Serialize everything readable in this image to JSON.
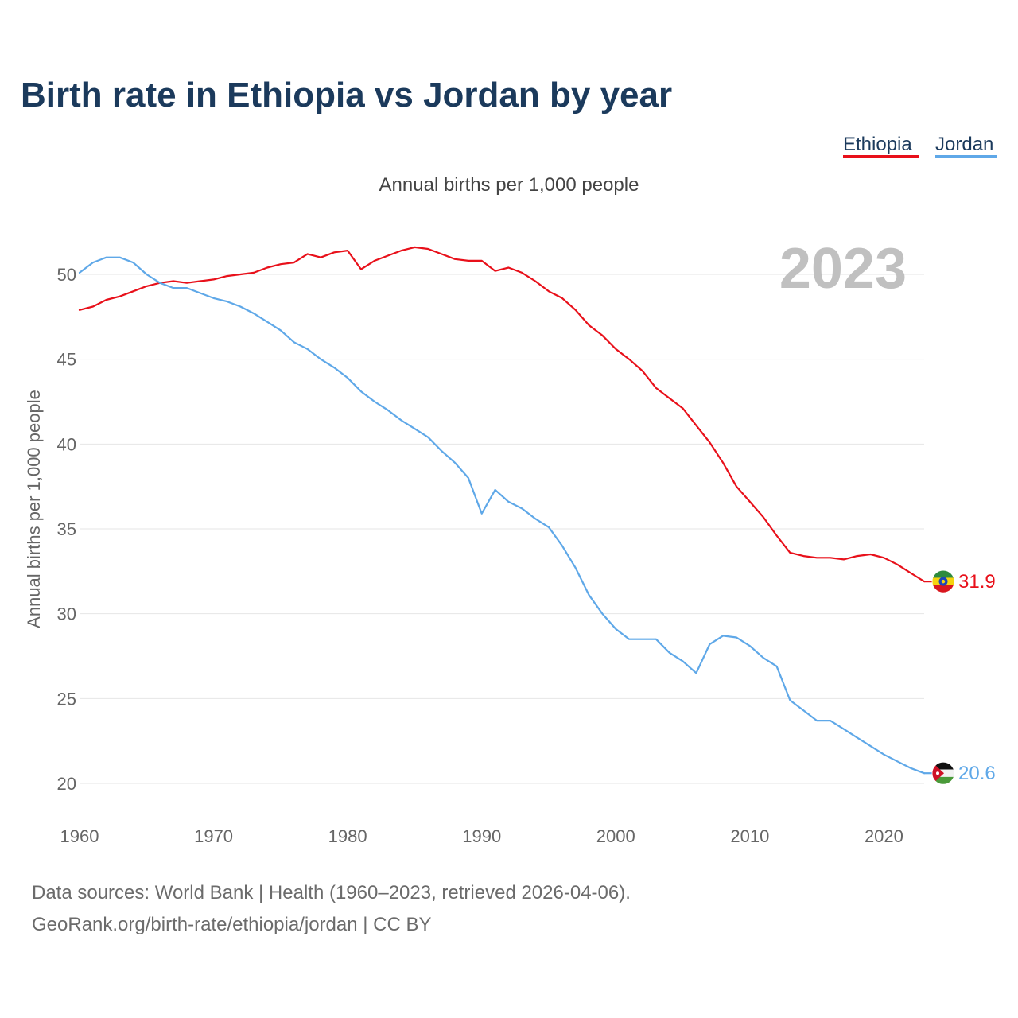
{
  "chart_data": {
    "type": "line",
    "title": "Birth rate in Ethiopia vs Jordan by year",
    "subtitle": "Annual births per 1,000 people",
    "ylabel": "Annual births per 1,000 people",
    "xlabel": "",
    "current_year_label": "2023",
    "xlim": [
      1960,
      2023
    ],
    "ylim": [
      18.5,
      53
    ],
    "x_ticks": [
      1960,
      1970,
      1980,
      1990,
      2000,
      2010,
      2020
    ],
    "y_ticks": [
      20,
      25,
      30,
      35,
      40,
      45,
      50
    ],
    "grid": true,
    "legend_position": "top-right",
    "x": [
      1960,
      1961,
      1962,
      1963,
      1964,
      1965,
      1966,
      1967,
      1968,
      1969,
      1970,
      1971,
      1972,
      1973,
      1974,
      1975,
      1976,
      1977,
      1978,
      1979,
      1980,
      1981,
      1982,
      1983,
      1984,
      1985,
      1986,
      1987,
      1988,
      1989,
      1990,
      1991,
      1992,
      1993,
      1994,
      1995,
      1996,
      1997,
      1998,
      1999,
      2000,
      2001,
      2002,
      2003,
      2004,
      2005,
      2006,
      2007,
      2008,
      2009,
      2010,
      2011,
      2012,
      2013,
      2014,
      2015,
      2016,
      2017,
      2018,
      2019,
      2020,
      2021,
      2022,
      2023
    ],
    "series": [
      {
        "name": "Ethiopia",
        "color": "#e8101a",
        "end_label": "31.9",
        "flag": "ethiopia-flag",
        "values": [
          47.9,
          48.1,
          48.5,
          48.7,
          49.0,
          49.3,
          49.5,
          49.6,
          49.5,
          49.6,
          49.7,
          49.9,
          50.0,
          50.1,
          50.4,
          50.6,
          50.7,
          51.2,
          51.0,
          51.3,
          51.4,
          50.3,
          50.8,
          51.1,
          51.4,
          51.6,
          51.5,
          51.2,
          50.9,
          50.8,
          50.8,
          50.2,
          50.4,
          50.1,
          49.6,
          49.0,
          48.6,
          47.9,
          47.0,
          46.4,
          45.6,
          45.0,
          44.3,
          43.3,
          42.7,
          42.1,
          41.1,
          40.1,
          38.9,
          37.5,
          36.6,
          35.7,
          34.6,
          33.6,
          33.4,
          33.3,
          33.3,
          33.2,
          33.4,
          33.5,
          33.3,
          32.9,
          32.4,
          31.9
        ]
      },
      {
        "name": "Jordan",
        "color": "#5fa8e8",
        "end_label": "20.6",
        "flag": "jordan-flag",
        "values": [
          50.1,
          50.7,
          51.0,
          51.0,
          50.7,
          50.0,
          49.5,
          49.2,
          49.2,
          48.9,
          48.6,
          48.4,
          48.1,
          47.7,
          47.2,
          46.7,
          46.0,
          45.6,
          45.0,
          44.5,
          43.9,
          43.1,
          42.5,
          42.0,
          41.4,
          40.9,
          40.4,
          39.6,
          38.9,
          38.0,
          35.9,
          37.3,
          36.6,
          36.2,
          35.6,
          35.1,
          34.0,
          32.7,
          31.1,
          30.0,
          29.1,
          28.5,
          28.5,
          28.5,
          27.7,
          27.2,
          26.5,
          28.2,
          28.7,
          28.6,
          28.1,
          27.4,
          26.9,
          24.9,
          24.3,
          23.7,
          23.7,
          23.2,
          22.7,
          22.2,
          21.7,
          21.3,
          20.9,
          20.6
        ]
      }
    ],
    "source_lines": [
      "Data sources: World Bank | Health (1960–2023, retrieved 2026-04-06).",
      "GeoRank.org/birth-rate/ethiopia/jordan | CC BY"
    ]
  }
}
